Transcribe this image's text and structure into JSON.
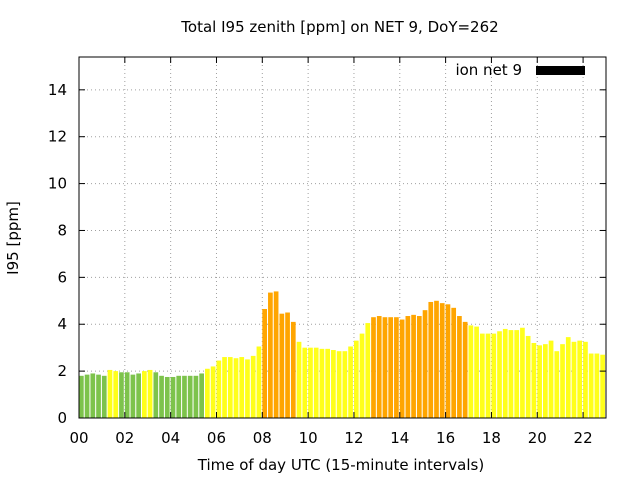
{
  "chart_data": {
    "type": "bar",
    "title": "Total I95 zenith [ppm] on NET 9, DoY=262",
    "xlabel": "Time of day UTC (15-minute intervals)",
    "ylabel": "I95 [ppm]",
    "legend": {
      "label": "ion net 9",
      "color": "#000000",
      "position": "top-right"
    },
    "xlim": [
      0,
      23.0
    ],
    "ylim": [
      0,
      15.4
    ],
    "xticks": [
      0,
      2,
      4,
      6,
      8,
      10,
      12,
      14,
      16,
      18,
      20,
      22
    ],
    "xtick_labels": [
      "00",
      "02",
      "04",
      "06",
      "08",
      "10",
      "12",
      "14",
      "16",
      "18",
      "20",
      "22"
    ],
    "yticks": [
      0,
      2,
      4,
      6,
      8,
      10,
      12,
      14
    ],
    "ytick_labels": [
      "0",
      "2",
      "4",
      "6",
      "8",
      "10",
      "12",
      "14"
    ],
    "grid": true,
    "palette": {
      "green": "#7dc34c",
      "yellow": "#ffff1a",
      "orange": "#ffa500"
    },
    "interval_hours": 0.25,
    "values": [
      1.8,
      1.85,
      1.9,
      1.85,
      1.8,
      2.05,
      2.0,
      1.95,
      1.95,
      1.85,
      1.9,
      2.0,
      2.05,
      1.95,
      1.8,
      1.75,
      1.75,
      1.8,
      1.8,
      1.8,
      1.8,
      1.9,
      2.1,
      2.2,
      2.45,
      2.6,
      2.6,
      2.55,
      2.6,
      2.5,
      2.65,
      3.05,
      4.65,
      5.35,
      5.4,
      4.45,
      4.5,
      4.1,
      3.25,
      3.0,
      3.0,
      3.0,
      2.95,
      2.95,
      2.9,
      2.85,
      2.85,
      3.05,
      3.3,
      3.6,
      4.05,
      4.3,
      4.35,
      4.3,
      4.3,
      4.3,
      4.2,
      4.35,
      4.4,
      4.35,
      4.6,
      4.95,
      5.0,
      4.9,
      4.85,
      4.7,
      4.35,
      4.1,
      3.95,
      3.9,
      3.6,
      3.6,
      3.6,
      3.7,
      3.8,
      3.75,
      3.75,
      3.85,
      3.5,
      3.2,
      3.1,
      3.15,
      3.3,
      2.85,
      3.15,
      3.45,
      3.25,
      3.3,
      3.25,
      2.75,
      2.75,
      2.7
    ],
    "levels": [
      "green",
      "green",
      "green",
      "green",
      "green",
      "yellow",
      "yellow",
      "green",
      "green",
      "green",
      "green",
      "yellow",
      "yellow",
      "green",
      "green",
      "green",
      "green",
      "green",
      "green",
      "green",
      "green",
      "green",
      "yellow",
      "yellow",
      "yellow",
      "yellow",
      "yellow",
      "yellow",
      "yellow",
      "yellow",
      "yellow",
      "yellow",
      "orange",
      "orange",
      "orange",
      "orange",
      "orange",
      "orange",
      "yellow",
      "yellow",
      "yellow",
      "yellow",
      "yellow",
      "yellow",
      "yellow",
      "yellow",
      "yellow",
      "yellow",
      "yellow",
      "yellow",
      "yellow",
      "orange",
      "orange",
      "orange",
      "orange",
      "orange",
      "orange",
      "orange",
      "orange",
      "orange",
      "orange",
      "orange",
      "orange",
      "orange",
      "orange",
      "orange",
      "orange",
      "orange",
      "yellow",
      "yellow",
      "yellow",
      "yellow",
      "yellow",
      "yellow",
      "yellow",
      "yellow",
      "yellow",
      "yellow",
      "yellow",
      "yellow",
      "yellow",
      "yellow",
      "yellow",
      "yellow",
      "yellow",
      "yellow",
      "yellow",
      "yellow",
      "yellow",
      "yellow",
      "yellow",
      "yellow"
    ]
  }
}
